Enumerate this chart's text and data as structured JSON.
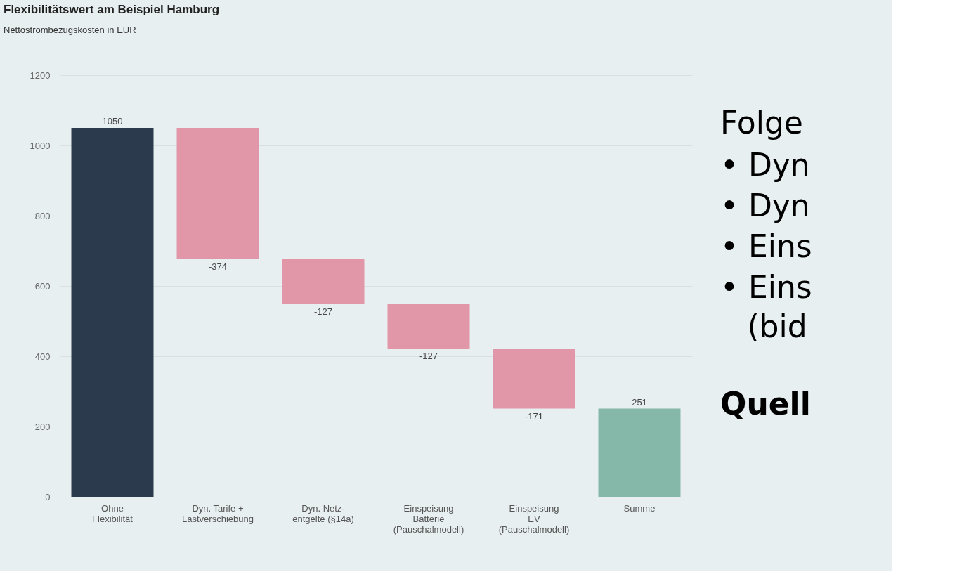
{
  "chart_data": {
    "type": "bar",
    "title": "Flexibilitätswert am Beispiel Hamburg",
    "subtitle": "Nettostrombezugskosten in EUR",
    "categories": [
      "Ohne\nFlexibilität",
      "Dyn. Tarife +\nLastverschiebung",
      "Dyn. Netz-\nentgelte (§14a)",
      "Einspeisung\nBatterie\n(Pauschalmodell)",
      "Einspeisung\nEV\n(Pauschalmodell)",
      "Summe"
    ],
    "values": [
      1050,
      -374,
      -127,
      -127,
      -171,
      251
    ],
    "base": [
      0,
      1050,
      676,
      549,
      422,
      0
    ],
    "colors": [
      "#2b3a4c",
      "#e297a8",
      "#e297a8",
      "#e297a8",
      "#e297a8",
      "#86b8aa"
    ],
    "data_labels": true,
    "ylim": [
      0,
      1200
    ],
    "yticks": [
      0,
      200,
      400,
      600,
      800,
      1000,
      1200
    ],
    "grid": "y",
    "annotations": [
      "Folge",
      "• Dyn",
      "• Dyn",
      "• Eins",
      "• Eins",
      "(bid",
      "Quell"
    ]
  }
}
